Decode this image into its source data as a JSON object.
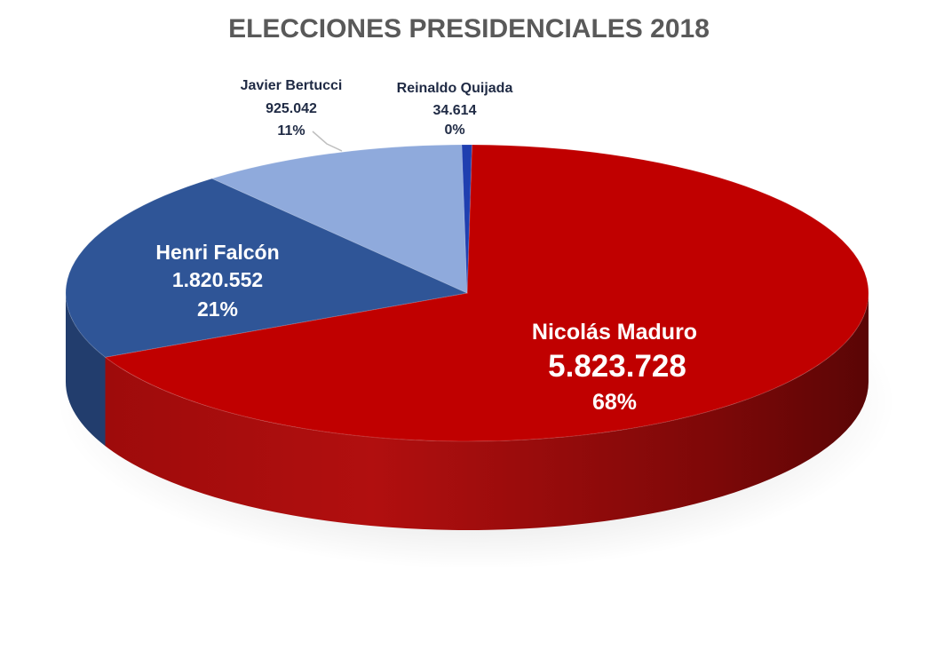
{
  "chart_data": {
    "type": "pie",
    "title": "ELECCIONES PRESIDENCIALES 2018",
    "slices": [
      {
        "name": "Nicolás Maduro",
        "value_label": "5.823.728",
        "value": 5823728,
        "percent_label": "68%",
        "color": "#c00000"
      },
      {
        "name": "Henri Falcón",
        "value_label": "1.820.552",
        "value": 1820552,
        "percent_label": "21%",
        "color": "#2f5597"
      },
      {
        "name": "Javier Bertucci",
        "value_label": "925.042",
        "value": 925042,
        "percent_label": "11%",
        "color": "#8faadc"
      },
      {
        "name": "Reinaldo Quijada",
        "value_label": "34.614",
        "value": 34614,
        "percent_label": "0%",
        "color": "#1f3fb0"
      }
    ]
  }
}
